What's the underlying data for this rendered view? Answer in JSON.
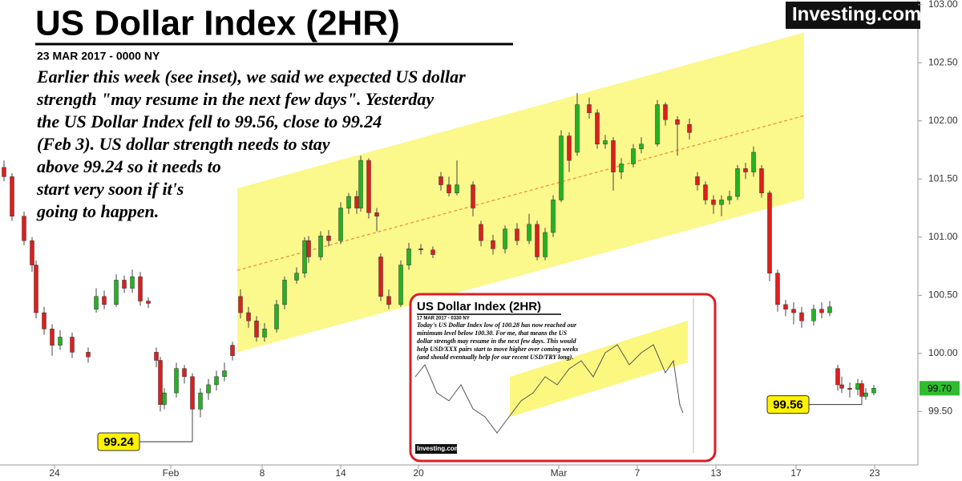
{
  "chart_data": {
    "type": "candlestick",
    "title": "US Dollar Index (2HR)",
    "subtitle": "23 MAR 2017 - 0000 NY",
    "commentary": [
      "Earlier this week (see inset), we said we expected US dollar",
      "strength \"may resume in the next few days\". Yesterday",
      "the US Dollar Index fell to 99.56, close to 99.24",
      "(Feb 3). US dollar strength needs to stay",
      "above 99.24 so it needs to",
      "start very soon if it's",
      "going to happen."
    ],
    "logo": "Investing.com",
    "up_color": "#22b322",
    "down_color": "#dd1f1f",
    "grid": false,
    "xlim": [
      0,
      229
    ],
    "ylim": [
      99.04,
      103.04
    ],
    "xticks": [
      {
        "value": 13.6,
        "label": "24"
      },
      {
        "value": 42.6,
        "label": "Feb"
      },
      {
        "value": 65.4,
        "label": "8"
      },
      {
        "value": 85,
        "label": "14"
      },
      {
        "value": 104.4,
        "label": "20"
      },
      {
        "value": 139.4,
        "label": "Mar"
      },
      {
        "value": 159,
        "label": "7"
      },
      {
        "value": 178.6,
        "label": "13"
      },
      {
        "value": 198.6,
        "label": "17"
      },
      {
        "value": 218.2,
        "label": "23"
      }
    ],
    "yticks": [
      {
        "value": 99.5,
        "label": "99.50"
      },
      {
        "value": 100,
        "label": "100.00"
      },
      {
        "value": 100.5,
        "label": "100.50"
      },
      {
        "value": 101,
        "label": "101.00"
      },
      {
        "value": 101.5,
        "label": "101.50"
      },
      {
        "value": 102,
        "label": "102.00"
      },
      {
        "value": 102.5,
        "label": "102.50"
      },
      {
        "value": 103,
        "label": "103.00"
      }
    ],
    "x": [
      1,
      3,
      6,
      8,
      9,
      11,
      13,
      15,
      18,
      22,
      24,
      26,
      29,
      31,
      33,
      35,
      37,
      39,
      40,
      41,
      44,
      46,
      48,
      50,
      52,
      54,
      56,
      58,
      60,
      62,
      64,
      66,
      69,
      71,
      74,
      76,
      77,
      80,
      82,
      85,
      87,
      89,
      90,
      92,
      94,
      95,
      97,
      100,
      102,
      105,
      108,
      110,
      112,
      114,
      118,
      120,
      123,
      126,
      129,
      132,
      134,
      136,
      138,
      140,
      142,
      144,
      147,
      149,
      151,
      153,
      155,
      158,
      160,
      164,
      166,
      169,
      172,
      174,
      176,
      178,
      180,
      182,
      184,
      186,
      188,
      190,
      192,
      194,
      196,
      198,
      200,
      203,
      205,
      207,
      209,
      210,
      212,
      214,
      215,
      216,
      218
    ],
    "open": [
      101.6,
      101.52,
      101.18,
      100.97,
      100.76,
      100.35,
      100.21,
      100.07,
      100.14,
      100.01,
      100.38,
      100.49,
      100.42,
      100.63,
      100.56,
      100.66,
      100.45,
      100.01,
      99.94,
      99.56,
      99.66,
      99.87,
      99.8,
      99.52,
      99.66,
      99.73,
      99.8,
      100.07,
      100.49,
      100.35,
      100.28,
      100.14,
      100.21,
      100.42,
      100.63,
      100.69,
      100.97,
      100.83,
      101.01,
      100.97,
      101.25,
      101.35,
      101.25,
      101.66,
      101.21,
      100.83,
      100.49,
      100.42,
      100.76,
      100.9,
      100.89,
      101.52,
      101.45,
      101.38,
      101.45,
      101.11,
      100.97,
      100.9,
      101.07,
      100.97,
      101.11,
      100.83,
      101.04,
      101.32,
      101.87,
      101.73,
      102.14,
      102.07,
      101.8,
      101.83,
      101.56,
      101.63,
      101.76,
      101.8,
      102.14,
      102.01,
      101.97,
      101.52,
      101.45,
      101.32,
      101.28,
      101.32,
      101.35,
      101.59,
      101.56,
      101.59,
      101.38,
      100.69,
      100.42,
      100.38,
      100.35,
      100.28,
      100.38,
      100.35,
      99.87,
      99.73,
      99.7,
      99.69,
      99.74,
      99.63,
      99.66
    ],
    "high": [
      101.66,
      101.55,
      101.22,
      101.0,
      100.8,
      100.4,
      100.25,
      100.2,
      100.18,
      100.05,
      100.56,
      100.54,
      100.68,
      100.67,
      100.72,
      100.7,
      100.48,
      100.05,
      99.97,
      99.7,
      99.92,
      99.9,
      99.83,
      99.7,
      99.78,
      99.85,
      99.92,
      100.1,
      100.55,
      100.4,
      100.32,
      100.26,
      100.46,
      100.66,
      100.74,
      101.0,
      101.01,
      101.05,
      101.06,
      101.3,
      101.38,
      101.4,
      101.7,
      101.68,
      101.25,
      100.86,
      100.55,
      100.8,
      100.95,
      100.94,
      100.92,
      101.56,
      101.52,
      101.66,
      101.48,
      101.14,
      101.02,
      101.1,
      101.12,
      101.2,
      101.14,
      101.08,
      101.36,
      101.92,
      101.9,
      102.24,
      102.2,
      102.1,
      101.88,
      101.86,
      101.68,
      101.8,
      101.86,
      102.18,
      102.16,
      102.04,
      102.02,
      101.56,
      101.48,
      101.36,
      101.36,
      101.4,
      101.62,
      101.64,
      101.78,
      101.62,
      101.4,
      100.72,
      100.46,
      100.44,
      100.4,
      100.42,
      100.44,
      100.45,
      99.9,
      99.8,
      99.75,
      99.78,
      99.77,
      99.7,
      99.73
    ],
    "low": [
      101.48,
      101.14,
      100.93,
      100.7,
      100.3,
      100.16,
      99.98,
      100.03,
      99.96,
      99.92,
      100.35,
      100.38,
      100.4,
      100.52,
      100.52,
      100.41,
      100.39,
      99.88,
      99.5,
      99.52,
      99.62,
      99.74,
      99.24,
      99.45,
      99.6,
      99.68,
      99.76,
      99.94,
      100.3,
      100.22,
      100.1,
      100.1,
      100.18,
      100.38,
      100.6,
      100.65,
      100.78,
      100.8,
      100.92,
      100.94,
      101.2,
      101.2,
      101.22,
      101.16,
      101.05,
      100.45,
      100.38,
      100.4,
      100.72,
      100.85,
      100.82,
      101.4,
      101.35,
      101.36,
      101.18,
      100.92,
      100.85,
      100.86,
      100.93,
      100.94,
      100.8,
      100.8,
      101.0,
      101.3,
      101.56,
      101.7,
      102.02,
      101.76,
      101.76,
      101.4,
      101.5,
      101.6,
      101.72,
      101.78,
      101.96,
      101.7,
      101.84,
      101.4,
      101.28,
      101.2,
      101.18,
      101.28,
      101.32,
      101.5,
      101.52,
      101.34,
      100.62,
      100.36,
      100.32,
      100.25,
      100.22,
      100.24,
      100.3,
      100.32,
      99.68,
      99.66,
      99.62,
      99.64,
      99.56,
      99.6,
      99.64
    ],
    "close": [
      101.52,
      101.18,
      100.97,
      100.76,
      100.35,
      100.21,
      100.07,
      100.14,
      100.01,
      99.97,
      100.49,
      100.42,
      100.63,
      100.56,
      100.66,
      100.45,
      100.43,
      99.94,
      99.56,
      99.66,
      99.87,
      99.8,
      99.52,
      99.66,
      99.73,
      99.8,
      99.85,
      99.98,
      100.35,
      100.28,
      100.14,
      100.21,
      100.42,
      100.63,
      100.69,
      100.97,
      100.83,
      101.01,
      100.97,
      101.25,
      101.35,
      101.25,
      101.66,
      101.21,
      101.18,
      100.49,
      100.42,
      100.76,
      100.9,
      100.89,
      100.85,
      101.45,
      101.38,
      101.45,
      101.25,
      100.97,
      100.9,
      101.07,
      100.97,
      101.11,
      100.83,
      101.04,
      101.32,
      101.87,
      101.66,
      102.14,
      102.07,
      101.8,
      101.83,
      101.56,
      101.63,
      101.76,
      101.8,
      102.14,
      102.01,
      101.97,
      101.9,
      101.45,
      101.32,
      101.28,
      101.32,
      101.35,
      101.59,
      101.56,
      101.73,
      101.38,
      100.69,
      100.42,
      100.38,
      100.35,
      100.28,
      100.38,
      100.35,
      100.4,
      99.73,
      99.7,
      99.69,
      99.74,
      99.63,
      99.66,
      99.7
    ],
    "channel": {
      "x": [
        59.2,
        200.6
      ],
      "upper": [
        101.42,
        102.76
      ],
      "lower": [
        100.01,
        101.33
      ]
    },
    "callouts": [
      {
        "value": 99.24,
        "x": 48
      },
      {
        "value": 99.56,
        "x": 215
      }
    ],
    "last_price": {
      "value": 99.7,
      "label": "99.70"
    },
    "inset": {
      "title": "US Dollar Index (2HR)",
      "subtitle": "17 MAR 2017 - 0330 NY",
      "text": [
        "Today's US Dollar Index low of 100.28 has now reached our",
        "minimum level below 100.30. For me, that means the US",
        "dollar strength may resume in the next few days. This would",
        "help USD/XXX pairs start to move higher over coming weeks",
        "(and should eventually help for our recent USD/TRY long)."
      ],
      "logo": "Investing.com"
    }
  }
}
